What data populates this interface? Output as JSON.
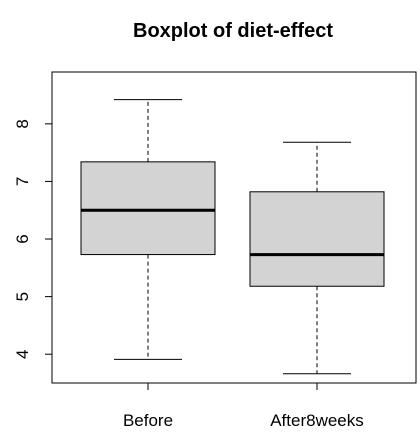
{
  "chart_data": {
    "type": "boxplot",
    "title": "Boxplot of diet-effect",
    "xlabel": "",
    "ylabel": "",
    "categories": [
      "Before",
      "After8weeks"
    ],
    "boxes": [
      {
        "category": "Before",
        "min": 3.91,
        "q1": 5.73,
        "median": 6.5,
        "q3": 7.34,
        "max": 8.42
      },
      {
        "category": "After8weeks",
        "min": 3.66,
        "q1": 5.18,
        "median": 5.73,
        "q3": 6.82,
        "max": 7.68
      }
    ],
    "ylim": [
      3.5,
      8.9
    ],
    "yticks": [
      4,
      5,
      6,
      7,
      8
    ],
    "grid": false,
    "legend": "none",
    "colors": {
      "box_fill": "#d3d3d3",
      "box_stroke": "#000000",
      "median": "#000000"
    }
  }
}
